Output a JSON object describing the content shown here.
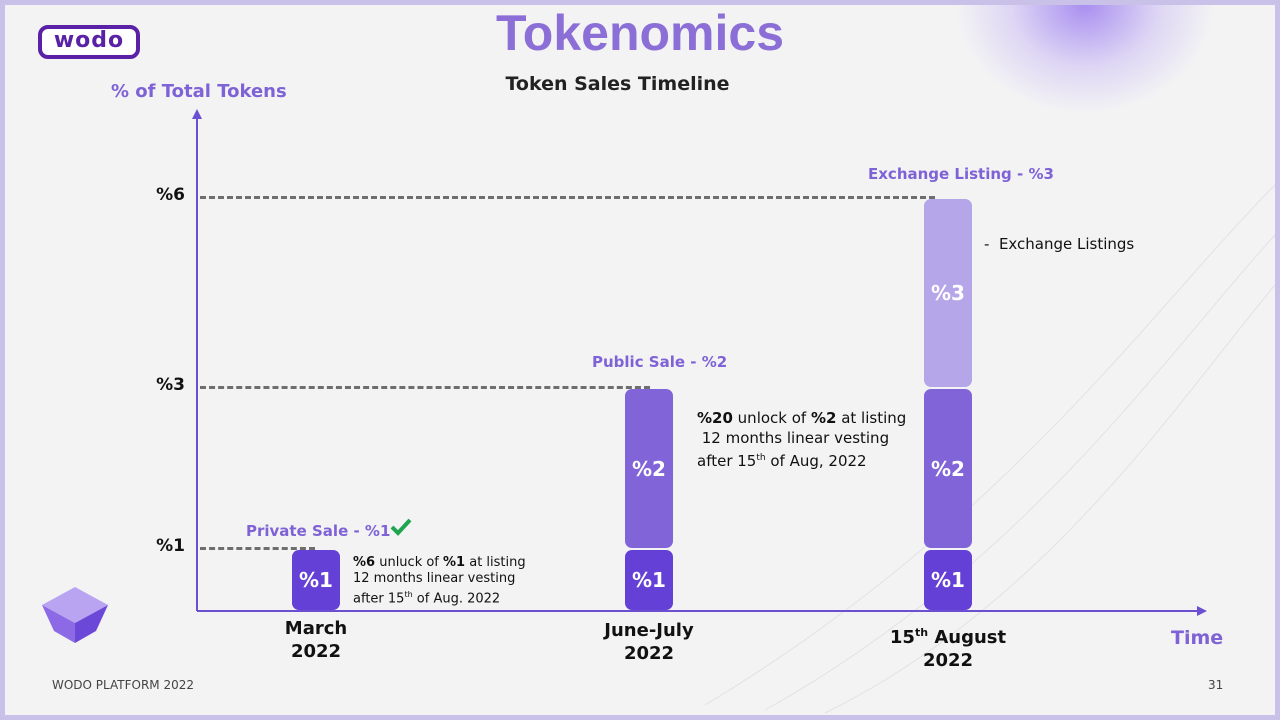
{
  "header": {
    "logo": "wodo",
    "title": "Tokenomics",
    "subtitle": "Token Sales Timeline"
  },
  "footer": {
    "text": "WODO PLATFORM 2022",
    "page": "31"
  },
  "colors": {
    "dark": "#6440d6",
    "mid": "#8064d8",
    "light": "#b4a6e8",
    "accent": "#7e62d6",
    "check": "#1fa550"
  },
  "chart_data": {
    "type": "bar",
    "stacked": true,
    "title": "Token Sales Timeline",
    "ylabel": "% of Total Tokens",
    "xlabel": "Time",
    "yticks": [
      {
        "value": 1,
        "label": "%1"
      },
      {
        "value": 3,
        "label": "%3"
      },
      {
        "value": 6,
        "label": "%6"
      }
    ],
    "ylim": [
      0,
      6
    ],
    "categories": [
      {
        "line1": "March",
        "line2": "2022",
        "sup": ""
      },
      {
        "line1": "June-July",
        "line2": "2022",
        "sup": ""
      },
      {
        "line1": "15",
        "sup": "th",
        "rest": " August",
        "line2": "2022"
      }
    ],
    "series": [
      {
        "name": "Private Sale",
        "values": [
          1,
          1,
          1
        ],
        "labels": [
          "%1",
          "%1",
          "%1"
        ]
      },
      {
        "name": "Public Sale",
        "values": [
          0,
          2,
          2
        ],
        "labels": [
          "",
          "%2",
          "%2"
        ]
      },
      {
        "name": "Exchange Listing",
        "values": [
          0,
          0,
          3
        ],
        "labels": [
          "",
          "",
          "%3"
        ]
      }
    ],
    "bar_titles": [
      "Private Sale - %1",
      "Public Sale - %2",
      "Exchange Listing - %3"
    ],
    "annotations": {
      "private": {
        "b1": "%6",
        "t1": " unluck of ",
        "b2": "%1",
        "t2": " at listing",
        "line2": "12 months  linear vesting",
        "line3a": "after 15",
        "line3sup": "th",
        "line3b": " of Aug. 2022"
      },
      "public": {
        "b1": "%20",
        "t1": " unlock of ",
        "b2": "%2",
        "t2": " at listing",
        "line2": " 12 months linear vesting",
        "line3a": "after 15",
        "line3sup": "th",
        "line3b": " of Aug, 2022"
      },
      "exchange": "-  Exchange Listings"
    }
  }
}
